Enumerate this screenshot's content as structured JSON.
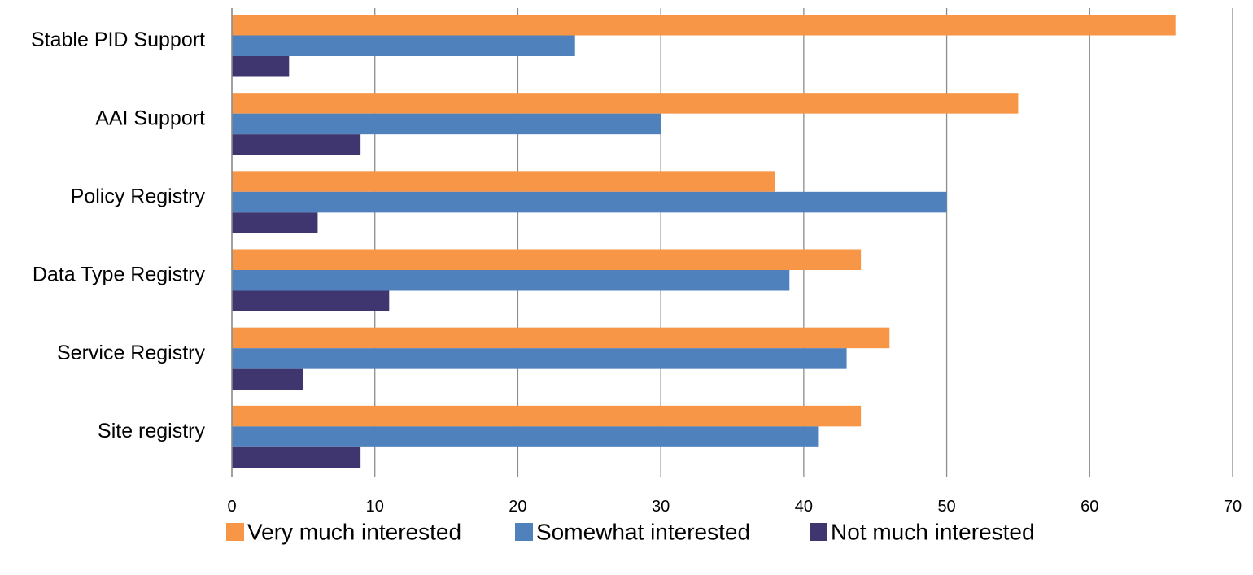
{
  "chart_data": {
    "type": "bar",
    "orientation": "horizontal",
    "categories": [
      "Stable PID Support",
      "AAI Support",
      "Policy Registry",
      "Data Type Registry",
      "Service Registry",
      "Site registry"
    ],
    "series": [
      {
        "name": "Very much interested",
        "color": "#F79646",
        "values": [
          66,
          55,
          38,
          44,
          46,
          44
        ]
      },
      {
        "name": "Somewhat interested",
        "color": "#4F81BD",
        "values": [
          24,
          30,
          50,
          39,
          43,
          41
        ]
      },
      {
        "name": "Not much interested",
        "color": "#3F3670",
        "values": [
          4,
          9,
          6,
          11,
          5,
          9
        ]
      }
    ],
    "xlim": [
      0,
      70
    ],
    "xticks": [
      0,
      10,
      20,
      30,
      40,
      50,
      60,
      70
    ],
    "grid": true,
    "legend_position": "bottom",
    "title": "",
    "xlabel": "",
    "ylabel": ""
  }
}
